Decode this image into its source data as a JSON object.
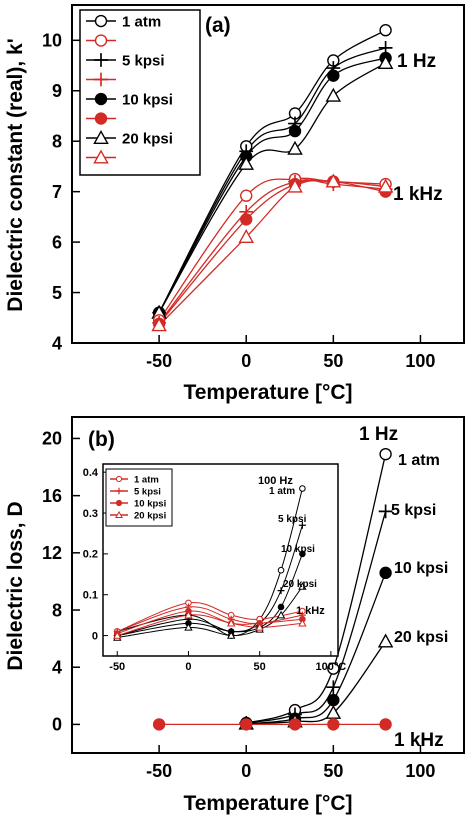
{
  "chart_data": [
    {
      "type": "line",
      "panel_label": "(a)",
      "xlabel": "Temperature [°C]",
      "ylabel": "Dielectric constant (real), k'",
      "xlim": [
        -100,
        125
      ],
      "ylim": [
        4,
        10.7
      ],
      "xticks": [
        "-50",
        "0",
        "50",
        "100"
      ],
      "yticks": [
        "4",
        "5",
        "6",
        "7",
        "8",
        "9",
        "10"
      ],
      "group_labels": [
        {
          "text": "1 Hz",
          "color": "#000000"
        },
        {
          "text": "1 kHz",
          "color": "#d42a25"
        }
      ],
      "legend": {
        "placement": "top-left",
        "entries": [
          {
            "label": "1 atm",
            "marker": "open-circle",
            "color": "#000000"
          },
          {
            "label": "",
            "marker": "open-circle",
            "color": "#d42a25"
          },
          {
            "label": "5 kpsi",
            "marker": "plus",
            "color": "#000000"
          },
          {
            "label": "",
            "marker": "plus",
            "color": "#d42a25"
          },
          {
            "label": "10 kpsi",
            "marker": "filled-circle",
            "color": "#000000"
          },
          {
            "label": "",
            "marker": "filled-circle",
            "color": "#d42a25"
          },
          {
            "label": "20 kpsi",
            "marker": "open-triangle",
            "color": "#000000"
          },
          {
            "label": "",
            "marker": "open-triangle",
            "color": "#d42a25"
          }
        ]
      },
      "series": [
        {
          "group": "1 Hz",
          "marker": "open-circle",
          "color": "#000000",
          "x": [
            -50,
            0,
            28,
            50,
            80
          ],
          "y": [
            4.6,
            7.9,
            8.55,
            9.6,
            10.2
          ]
        },
        {
          "group": "1 Hz",
          "marker": "plus",
          "color": "#000000",
          "x": [
            -50,
            0,
            28,
            50,
            80
          ],
          "y": [
            4.6,
            7.8,
            8.35,
            9.45,
            9.85
          ]
        },
        {
          "group": "1 Hz",
          "marker": "filled-circle",
          "color": "#000000",
          "x": [
            -50,
            0,
            28,
            50,
            80
          ],
          "y": [
            4.6,
            7.7,
            8.2,
            9.3,
            9.65
          ]
        },
        {
          "group": "1 Hz",
          "marker": "open-triangle",
          "color": "#000000",
          "x": [
            -50,
            0,
            28,
            50,
            80
          ],
          "y": [
            4.6,
            7.55,
            7.85,
            8.9,
            9.55
          ]
        },
        {
          "group": "1 kHz",
          "marker": "open-circle",
          "color": "#d42a25",
          "x": [
            -50,
            0,
            28,
            50,
            80
          ],
          "y": [
            4.45,
            6.92,
            7.25,
            7.2,
            7.15
          ]
        },
        {
          "group": "1 kHz",
          "marker": "plus",
          "color": "#d42a25",
          "x": [
            -50,
            0,
            28,
            50,
            80
          ],
          "y": [
            4.4,
            6.6,
            7.2,
            7.15,
            7.05
          ]
        },
        {
          "group": "1 kHz",
          "marker": "filled-circle",
          "color": "#d42a25",
          "x": [
            -50,
            0,
            28,
            50,
            80
          ],
          "y": [
            4.38,
            6.45,
            7.15,
            7.2,
            7.0
          ]
        },
        {
          "group": "1 kHz",
          "marker": "open-triangle",
          "color": "#d42a25",
          "x": [
            -50,
            0,
            28,
            50,
            80
          ],
          "y": [
            4.35,
            6.1,
            7.1,
            7.2,
            7.1
          ]
        }
      ]
    },
    {
      "type": "line",
      "panel_label": "(b)",
      "xlabel": "Temperature [°C]",
      "ylabel": "Dielectric loss, D",
      "xlim": [
        -100,
        125
      ],
      "ylim": [
        -2,
        21.5
      ],
      "xticks": [
        "-50",
        "0",
        "50",
        "100"
      ],
      "yticks": [
        "0",
        "4",
        "8",
        "12",
        "16",
        "20"
      ],
      "group_labels": [
        {
          "text": "1 Hz",
          "color": "#000000"
        },
        {
          "text": "1 kHz",
          "color": "#d42a25"
        }
      ],
      "series_labels": [
        {
          "text": "1 atm",
          "color": "#000000"
        },
        {
          "text": "5 kpsi",
          "color": "#000000"
        },
        {
          "text": "10 kpsi",
          "color": "#000000"
        },
        {
          "text": "20 kpsi",
          "color": "#000000"
        }
      ],
      "series": [
        {
          "group": "1 Hz",
          "marker": "open-circle",
          "color": "#000000",
          "x": [
            0,
            28,
            50,
            80
          ],
          "y": [
            0.1,
            1.0,
            3.9,
            18.9
          ]
        },
        {
          "group": "1 Hz",
          "marker": "plus",
          "color": "#000000",
          "x": [
            0,
            28,
            50,
            80
          ],
          "y": [
            0.1,
            0.7,
            2.6,
            14.9
          ]
        },
        {
          "group": "1 Hz",
          "marker": "filled-circle",
          "color": "#000000",
          "x": [
            0,
            28,
            50,
            80
          ],
          "y": [
            0.05,
            0.4,
            1.7,
            10.6
          ]
        },
        {
          "group": "1 Hz",
          "marker": "open-triangle",
          "color": "#000000",
          "x": [
            0,
            28,
            50,
            80
          ],
          "y": [
            0.05,
            0.2,
            0.8,
            5.8
          ]
        },
        {
          "group": "1 kHz",
          "marker": "filled-circle",
          "color": "#d42a25",
          "x": [
            -50,
            0,
            28,
            50,
            80
          ],
          "y": [
            0,
            0,
            0,
            0,
            0
          ]
        }
      ],
      "inset": {
        "xlim": [
          -60,
          105
        ],
        "ylim": [
          -0.05,
          0.42
        ],
        "xticks": [
          "-50",
          "0",
          "50",
          "100°C"
        ],
        "yticks": [
          "0",
          "0.1",
          "0.2",
          "0.3",
          "0.4"
        ],
        "group_labels": [
          {
            "text": "100 Hz",
            "color": "#000000"
          },
          {
            "text": "1 kHz",
            "color": "#d42a25"
          }
        ],
        "series_labels": [
          {
            "text": "1 atm",
            "color": "#000000"
          },
          {
            "text": "5 kpsi",
            "color": "#000000"
          },
          {
            "text": "10 kpsi",
            "color": "#000000"
          },
          {
            "text": "20 kpsi",
            "color": "#000000"
          }
        ],
        "legend": {
          "placement": "top-left",
          "entries": [
            {
              "label": "1 atm",
              "marker": "open-circle",
              "color": "#d42a25"
            },
            {
              "label": "5 kpsi",
              "marker": "plus",
              "color": "#d42a25"
            },
            {
              "label": "10 kpsi",
              "marker": "filled-circle",
              "color": "#d42a25"
            },
            {
              "label": "20 kpsi",
              "marker": "open-triangle",
              "color": "#d42a25"
            }
          ]
        },
        "series": [
          {
            "group": "100 Hz",
            "marker": "open-circle",
            "color": "#000000",
            "x": [
              -50,
              0,
              30,
              50,
              65,
              80
            ],
            "y": [
              0.01,
              0.05,
              0.0,
              0.04,
              0.16,
              0.36
            ]
          },
          {
            "group": "100 Hz",
            "marker": "plus",
            "color": "#000000",
            "x": [
              -50,
              0,
              30,
              50,
              65,
              80
            ],
            "y": [
              0.0,
              0.04,
              0.01,
              0.03,
              0.11,
              0.27
            ]
          },
          {
            "group": "100 Hz",
            "marker": "filled-circle",
            "color": "#000000",
            "x": [
              -50,
              0,
              30,
              50,
              65,
              80
            ],
            "y": [
              0.0,
              0.03,
              0.01,
              0.02,
              0.07,
              0.2
            ]
          },
          {
            "group": "100 Hz",
            "marker": "open-triangle",
            "color": "#000000",
            "x": [
              -50,
              0,
              30,
              50,
              65,
              80
            ],
            "y": [
              -0.005,
              0.02,
              0.0,
              0.015,
              0.05,
              0.12
            ]
          },
          {
            "group": "1 kHz",
            "marker": "open-circle",
            "color": "#d42a25",
            "x": [
              -50,
              0,
              30,
              50,
              80
            ],
            "y": [
              0.01,
              0.08,
              0.05,
              0.04,
              0.06
            ]
          },
          {
            "group": "1 kHz",
            "marker": "plus",
            "color": "#d42a25",
            "x": [
              -50,
              0,
              30,
              50,
              80
            ],
            "y": [
              0.01,
              0.07,
              0.04,
              0.03,
              0.05
            ]
          },
          {
            "group": "1 kHz",
            "marker": "filled-circle",
            "color": "#d42a25",
            "x": [
              -50,
              0,
              30,
              50,
              80
            ],
            "y": [
              0.005,
              0.06,
              0.03,
              0.03,
              0.04
            ]
          },
          {
            "group": "1 kHz",
            "marker": "open-triangle",
            "color": "#d42a25",
            "x": [
              -50,
              0,
              30,
              50,
              80
            ],
            "y": [
              0.0,
              0.05,
              0.03,
              0.02,
              0.03
            ]
          }
        ]
      }
    }
  ]
}
